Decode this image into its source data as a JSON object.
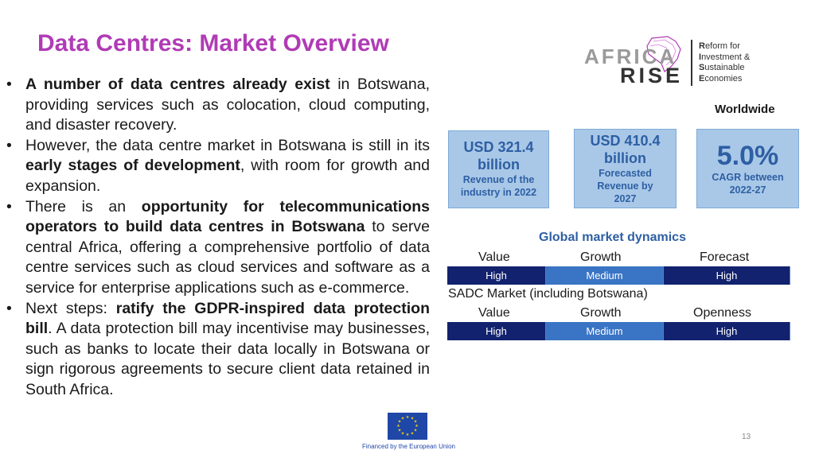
{
  "title": "Data Centres: Market Overview",
  "bullets": [
    {
      "segments": [
        {
          "t": "A number of data centres already exist",
          "b": true
        },
        {
          "t": " in Botswana, providing services such as colocation, cloud computing, and disaster recovery.",
          "b": false
        }
      ]
    },
    {
      "segments": [
        {
          "t": "However, the data centre market in Botswana is still in its ",
          "b": false
        },
        {
          "t": "early stages of development",
          "b": true
        },
        {
          "t": ", with room for growth and expansion.",
          "b": false
        }
      ]
    },
    {
      "segments": [
        {
          "t": "There is an ",
          "b": false
        },
        {
          "t": "opportunity for telecommunications operators to build data centres in Botswana",
          "b": true
        },
        {
          "t": " to serve central Africa, offering a comprehensive portfolio of data centre services such as cloud services and software as a service for enterprise applications such as e-commerce.",
          "b": false
        }
      ]
    },
    {
      "segments": [
        {
          "t": "Next steps: ",
          "b": false
        },
        {
          "t": "ratify the GDPR-inspired data protection bill",
          "b": true
        },
        {
          "t": ". A data protection bill may incentivise may businesses, such as banks to locate their data locally in Botswana or sign rigorous agreements to secure client data retained in South Africa.",
          "b": false
        }
      ]
    }
  ],
  "logo": {
    "africa": "AFRICA",
    "rise": "RISE",
    "lines": [
      {
        "initial": "R",
        "rest": "eform for"
      },
      {
        "initial": "I",
        "rest": "nvestment &"
      },
      {
        "initial": "S",
        "rest": "ustainable"
      },
      {
        "initial": "E",
        "rest": "conomies"
      }
    ]
  },
  "worldwide_label": "Worldwide",
  "stat1": {
    "big1": "USD 321.4",
    "big2": "billion",
    "small1": "Revenue of the",
    "small2": "industry in 2022"
  },
  "stat2": {
    "big1": "USD 410.4",
    "big2": "billion",
    "small1": "Forecasted",
    "small2": "Revenue by",
    "small3": "2027"
  },
  "stat3": {
    "big": "5.0%",
    "small1": "CAGR between",
    "small2": "2022-27"
  },
  "global": {
    "title": "Global market dynamics",
    "headers": [
      "Value",
      "Growth",
      "Forecast"
    ],
    "values": [
      "High",
      "Medium",
      "High"
    ]
  },
  "sadc": {
    "title": "SADC Market (including Botswana)",
    "headers": [
      "Value",
      "Growth",
      "Openness"
    ],
    "values": [
      "High",
      "Medium",
      "High"
    ]
  },
  "colors": {
    "title": "#b03bb5",
    "high": "#12226e",
    "medium": "#3a74c4",
    "box": "#a9c8e8",
    "box_text": "#2e5fa3"
  },
  "eu_caption": "Financed by the European Union",
  "page_number": "13"
}
